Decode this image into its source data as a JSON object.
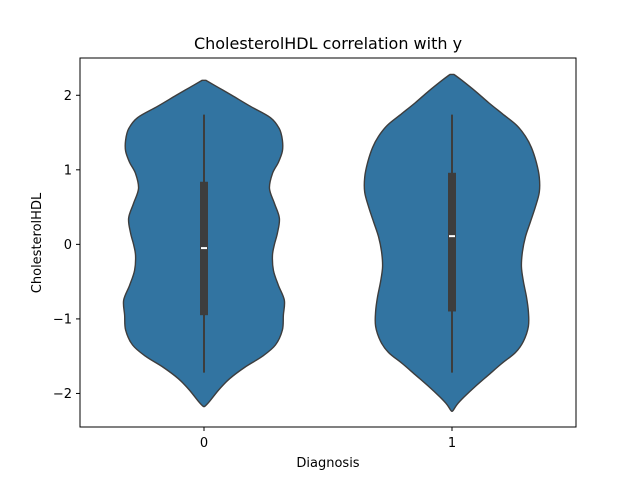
{
  "chart_data": {
    "type": "violin",
    "title": "CholesterolHDL correlation with y",
    "xlabel": "Diagnosis",
    "ylabel": "CholesterolHDL",
    "categories": [
      "0",
      "1"
    ],
    "ylim": [
      -2.45,
      2.5
    ],
    "yticks": [
      -2,
      -1,
      0,
      1,
      2
    ],
    "ytick_labels": [
      "−2",
      "−1",
      "0",
      "1",
      "2"
    ],
    "grid": false,
    "legend": "none",
    "colors": {
      "fill": "#3274a1",
      "outline": "#3d3d3d",
      "box": "#3d3d3d",
      "median": "#ffffff"
    },
    "violins": [
      {
        "category": "0",
        "min": -1.72,
        "q1": -0.95,
        "median": -0.05,
        "q3": 0.84,
        "max": 1.74,
        "kde_low": -2.17,
        "kde_high": 2.2,
        "density_profile": [
          [
            2.2,
            0.02
          ],
          [
            2.1,
            0.15
          ],
          [
            2.0,
            0.28
          ],
          [
            1.85,
            0.47
          ],
          [
            1.7,
            0.67
          ],
          [
            1.55,
            0.76
          ],
          [
            1.4,
            0.79
          ],
          [
            1.25,
            0.79
          ],
          [
            1.1,
            0.75
          ],
          [
            0.95,
            0.69
          ],
          [
            0.75,
            0.66
          ],
          [
            0.55,
            0.71
          ],
          [
            0.35,
            0.76
          ],
          [
            0.15,
            0.74
          ],
          [
            0.0,
            0.71
          ],
          [
            -0.15,
            0.69
          ],
          [
            -0.35,
            0.7
          ],
          [
            -0.55,
            0.75
          ],
          [
            -0.75,
            0.81
          ],
          [
            -0.95,
            0.8
          ],
          [
            -1.15,
            0.79
          ],
          [
            -1.35,
            0.72
          ],
          [
            -1.5,
            0.59
          ],
          [
            -1.65,
            0.41
          ],
          [
            -1.8,
            0.26
          ],
          [
            -1.95,
            0.15
          ],
          [
            -2.1,
            0.06
          ],
          [
            -2.17,
            0.01
          ]
        ]
      },
      {
        "category": "1",
        "min": -1.72,
        "q1": -0.9,
        "median": 0.11,
        "q3": 0.96,
        "max": 1.74,
        "kde_low": -2.23,
        "kde_high": 2.28,
        "density_profile": [
          [
            2.28,
            0.02
          ],
          [
            2.2,
            0.1
          ],
          [
            2.05,
            0.24
          ],
          [
            1.9,
            0.37
          ],
          [
            1.75,
            0.51
          ],
          [
            1.6,
            0.65
          ],
          [
            1.45,
            0.74
          ],
          [
            1.3,
            0.8
          ],
          [
            1.1,
            0.85
          ],
          [
            0.9,
            0.88
          ],
          [
            0.7,
            0.88
          ],
          [
            0.5,
            0.84
          ],
          [
            0.3,
            0.79
          ],
          [
            0.1,
            0.74
          ],
          [
            -0.1,
            0.71
          ],
          [
            -0.3,
            0.7
          ],
          [
            -0.5,
            0.72
          ],
          [
            -0.7,
            0.75
          ],
          [
            -0.9,
            0.77
          ],
          [
            -1.1,
            0.77
          ],
          [
            -1.3,
            0.72
          ],
          [
            -1.45,
            0.64
          ],
          [
            -1.6,
            0.5
          ],
          [
            -1.75,
            0.37
          ],
          [
            -1.9,
            0.24
          ],
          [
            -2.05,
            0.12
          ],
          [
            -2.15,
            0.05
          ],
          [
            -2.23,
            0.01
          ]
        ]
      }
    ]
  }
}
